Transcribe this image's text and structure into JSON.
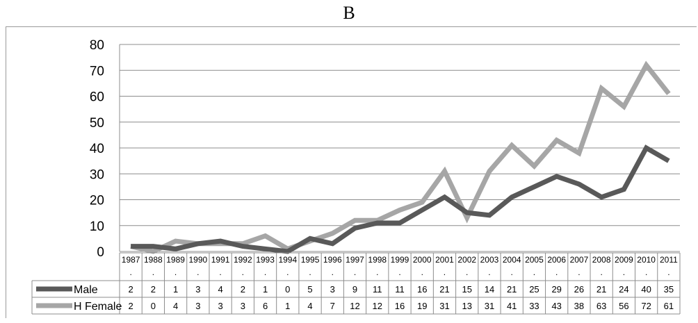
{
  "panel_label": "B",
  "chart_data": {
    "type": "line",
    "title": "",
    "xlabel": "",
    "ylabel": "",
    "ylim": [
      0,
      80
    ],
    "yticks": [
      "0",
      "10",
      "20",
      "30",
      "40",
      "50",
      "60",
      "70",
      "80"
    ],
    "grid": true,
    "legend": "data table (bottom)",
    "categories": [
      "1987",
      "1988",
      "1989",
      "1990",
      "1991",
      "1992",
      "1993",
      "1994",
      "1995",
      "1996",
      "1997",
      "1998",
      "1999",
      "2000",
      "2001",
      "2002",
      "2003",
      "2004",
      "2005",
      "2006",
      "2007",
      "2008",
      "2009",
      "2010",
      "2011"
    ],
    "category_suffix": ".",
    "series": [
      {
        "name": "Male",
        "color": "#595959",
        "values": [
          2,
          2,
          1,
          3,
          4,
          2,
          1,
          0,
          5,
          3,
          9,
          11,
          11,
          16,
          21,
          15,
          14,
          21,
          25,
          29,
          26,
          21,
          24,
          40,
          35
        ]
      },
      {
        "name": "H Female",
        "color": "#a6a6a6",
        "values": [
          2,
          0,
          4,
          3,
          3,
          3,
          6,
          1,
          4,
          7,
          12,
          12,
          16,
          19,
          31,
          13,
          31,
          41,
          33,
          43,
          38,
          63,
          56,
          72,
          61
        ]
      }
    ]
  }
}
